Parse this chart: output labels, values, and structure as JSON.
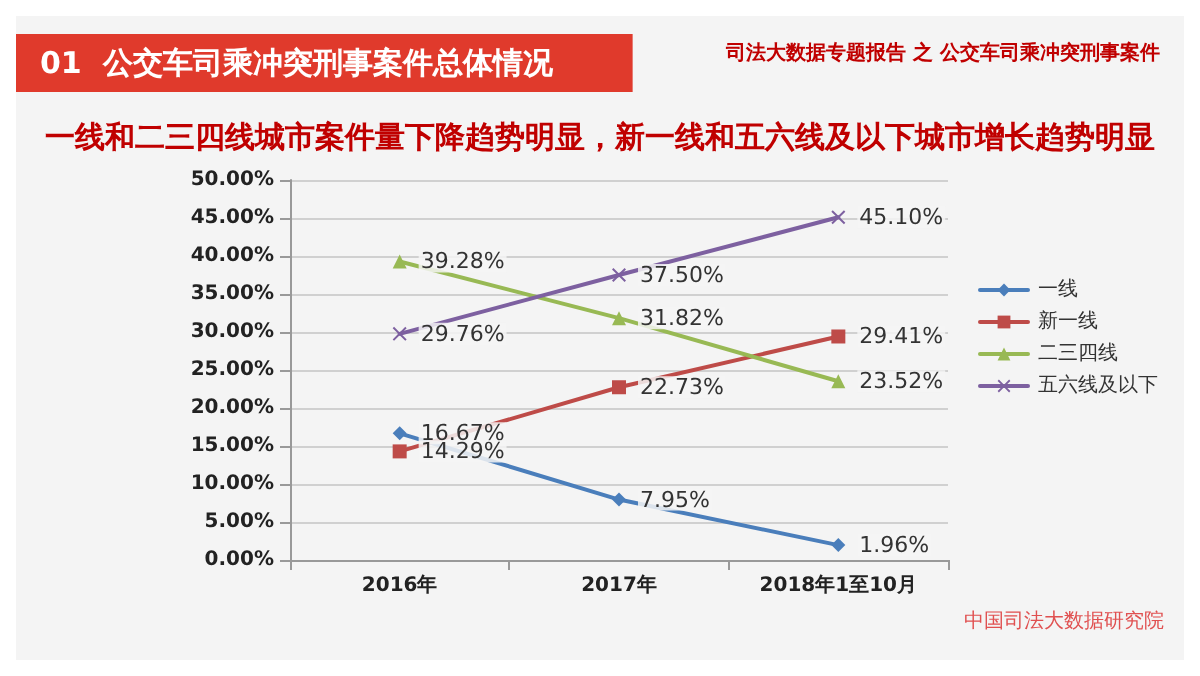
{
  "chart_data": {
    "type": "line",
    "title": "01  公交车司乘冲突刑事案件总体情况",
    "subtitle": "一线和二三四线城市案件量下降趋势明显，新一线和五六线及以下城市增长趋势明显",
    "annotations": [
      "司法大数据专题报告 之 公交车司乘冲突刑事案件",
      "中国司法大数据研究院"
    ],
    "categories": [
      "2016年",
      "2017年",
      "2018年1至10月"
    ],
    "series": [
      {
        "name": "一线",
        "color": "#4a7ebb",
        "marker": "diamond",
        "values": [
          16.67,
          7.95,
          1.96
        ],
        "value_labels": [
          "16.67%",
          "7.95%",
          "1.96%"
        ]
      },
      {
        "name": "新一线",
        "color": "#be4b48",
        "marker": "square",
        "values": [
          14.29,
          22.73,
          29.41
        ],
        "value_labels": [
          "14.29%",
          "22.73%",
          "29.41%"
        ]
      },
      {
        "name": "二三四线",
        "color": "#98b954",
        "marker": "triangle",
        "values": [
          39.28,
          31.82,
          23.52
        ],
        "value_labels": [
          "39.28%",
          "31.82%",
          "23.52%"
        ]
      },
      {
        "name": "五六线及以下",
        "color": "#7d60a0",
        "marker": "cross",
        "values": [
          29.76,
          37.5,
          45.1
        ],
        "value_labels": [
          "29.76%",
          "37.50%",
          "45.10%"
        ]
      }
    ],
    "ylim": [
      0,
      50
    ],
    "yticks": [
      {
        "value": 0,
        "label": "0.00%"
      },
      {
        "value": 5,
        "label": "5.00%"
      },
      {
        "value": 10,
        "label": "10.00%"
      },
      {
        "value": 15,
        "label": "15.00%"
      },
      {
        "value": 20,
        "label": "20.00%"
      },
      {
        "value": 25,
        "label": "25.00%"
      },
      {
        "value": 30,
        "label": "30.00%"
      },
      {
        "value": 35,
        "label": "35.00%"
      },
      {
        "value": 40,
        "label": "40.00%"
      },
      {
        "value": 45,
        "label": "45.00%"
      },
      {
        "value": 50,
        "label": "50.00%"
      }
    ],
    "grid": "y",
    "legend": "right"
  }
}
